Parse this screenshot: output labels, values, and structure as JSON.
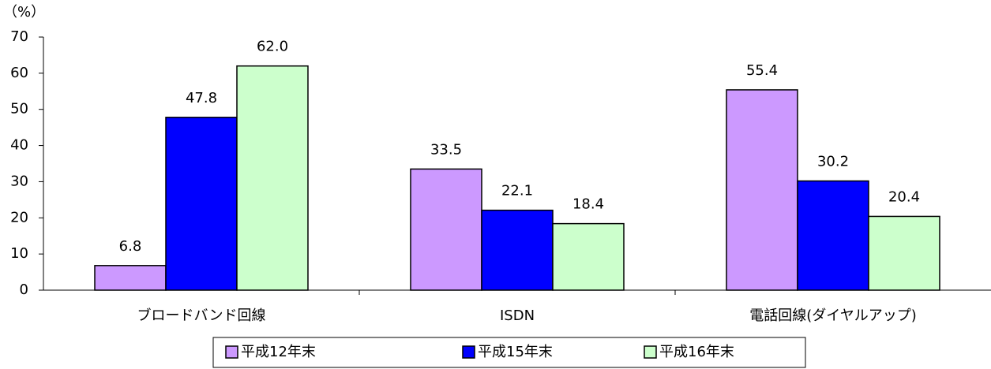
{
  "chart_data": {
    "type": "bar",
    "y_label": "（%）",
    "categories": [
      "ブロードバンド回線",
      "ISDN",
      "電話回線(ダイヤルアップ)"
    ],
    "series": [
      {
        "name": "平成12年末",
        "color": "#cc99ff",
        "values": [
          6.8,
          33.5,
          55.4
        ],
        "value_labels": [
          "6.8",
          "33.5",
          "55.4"
        ]
      },
      {
        "name": "平成15年末",
        "color": "#0000ff",
        "values": [
          47.8,
          22.1,
          30.2
        ],
        "value_labels": [
          "47.8",
          "22.1",
          "30.2"
        ]
      },
      {
        "name": "平成16年末",
        "color": "#ccffcc",
        "values": [
          62.0,
          18.4,
          20.4
        ],
        "value_labels": [
          "62.0",
          "18.4",
          "20.4"
        ]
      }
    ],
    "ylim": [
      0,
      70
    ],
    "yticks": [
      0,
      10,
      20,
      30,
      40,
      50,
      60,
      70
    ],
    "grid": false,
    "legend": "bottom"
  }
}
